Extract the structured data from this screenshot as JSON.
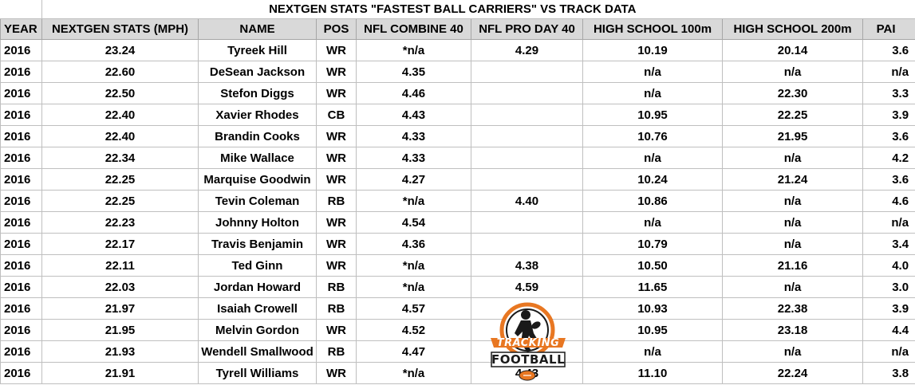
{
  "title": "NEXTGEN STATS \"FASTEST BALL CARRIERS\" VS TRACK DATA",
  "columns": [
    "YEAR",
    "NEXTGEN STATS (MPH)",
    "NAME",
    "POS",
    "NFL COMBINE 40",
    "NFL PRO DAY 40",
    "HIGH SCHOOL 100m",
    "HIGH SCHOOL 200m",
    "PAI"
  ],
  "rows": [
    [
      "2016",
      "23.24",
      "Tyreek Hill",
      "WR",
      "*n/a",
      "4.29",
      "10.19",
      "20.14",
      "3.6"
    ],
    [
      "2016",
      "22.60",
      "DeSean Jackson",
      "WR",
      "4.35",
      "",
      "n/a",
      "n/a",
      "n/a"
    ],
    [
      "2016",
      "22.50",
      "Stefon Diggs",
      "WR",
      "4.46",
      "",
      "n/a",
      "22.30",
      "3.3"
    ],
    [
      "2016",
      "22.40",
      "Xavier Rhodes",
      "CB",
      "4.43",
      "",
      "10.95",
      "22.25",
      "3.9"
    ],
    [
      "2016",
      "22.40",
      "Brandin Cooks",
      "WR",
      "4.33",
      "",
      "10.76",
      "21.95",
      "3.6"
    ],
    [
      "2016",
      "22.34",
      "Mike Wallace",
      "WR",
      "4.33",
      "",
      "n/a",
      "n/a",
      "4.2"
    ],
    [
      "2016",
      "22.25",
      "Marquise Goodwin",
      "WR",
      "4.27",
      "",
      "10.24",
      "21.24",
      "3.6"
    ],
    [
      "2016",
      "22.25",
      "Tevin Coleman",
      "RB",
      "*n/a",
      "4.40",
      "10.86",
      "n/a",
      "4.6"
    ],
    [
      "2016",
      "22.23",
      "Johnny Holton",
      "WR",
      "4.54",
      "",
      "n/a",
      "n/a",
      "n/a"
    ],
    [
      "2016",
      "22.17",
      "Travis Benjamin",
      "WR",
      "4.36",
      "",
      "10.79",
      "n/a",
      "3.4"
    ],
    [
      "2016",
      "22.11",
      "Ted Ginn",
      "WR",
      "*n/a",
      "4.38",
      "10.50",
      "21.16",
      "4.0"
    ],
    [
      "2016",
      "22.03",
      "Jordan Howard",
      "RB",
      "*n/a",
      "4.59",
      "11.65",
      "n/a",
      "3.0"
    ],
    [
      "2016",
      "21.97",
      "Isaiah Crowell",
      "RB",
      "4.57",
      "",
      "10.93",
      "22.38",
      "3.9"
    ],
    [
      "2016",
      "21.95",
      "Melvin Gordon",
      "WR",
      "4.52",
      "",
      "10.95",
      "23.18",
      "4.4"
    ],
    [
      "2016",
      "21.93",
      "Wendell Smallwood",
      "RB",
      "4.47",
      "",
      "n/a",
      "n/a",
      "n/a"
    ],
    [
      "2016",
      "21.91",
      "Tyrell Williams",
      "WR",
      "*n/a",
      "4.43",
      "11.10",
      "22.24",
      "3.8"
    ]
  ],
  "logo": {
    "line1": "TRACKING",
    "line2": "FOOTBALL",
    "icon": "football-runner-icon",
    "accent": "#e87722"
  },
  "colors": {
    "header_bg": "#d9d9d9",
    "grid": "#bfbfbf"
  }
}
